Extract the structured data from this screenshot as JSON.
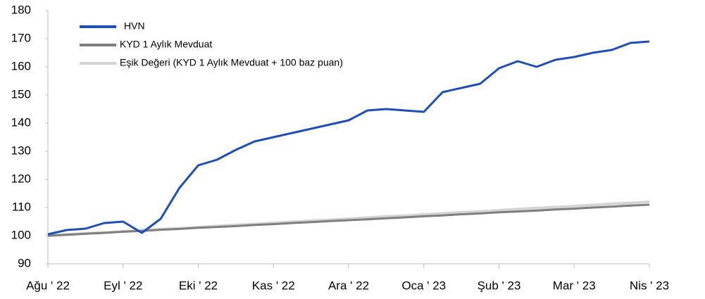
{
  "chart_data": {
    "type": "line",
    "categories": [
      "Ağu ' 22",
      null,
      null,
      null,
      "Eyl ' 22",
      null,
      null,
      null,
      "Eki ' 22",
      null,
      null,
      null,
      "Kas ' 22",
      null,
      null,
      null,
      "Ara ' 22",
      null,
      null,
      null,
      "Oca ' 23",
      null,
      null,
      null,
      "Şub ' 23",
      null,
      null,
      null,
      "Mar ' 23",
      null,
      null,
      null,
      "Nis ' 23"
    ],
    "series": [
      {
        "name": "HVN",
        "color": "#1f4eb4",
        "values": [
          100.5,
          102,
          102.5,
          104.5,
          105,
          101,
          106,
          117,
          125,
          127,
          130.5,
          133.5,
          135,
          136.5,
          138,
          139.5,
          141,
          144.5,
          145,
          144.5,
          144,
          151,
          152.5,
          154,
          159.5,
          162,
          160,
          162.5,
          163.5,
          165,
          166,
          168.5,
          169
        ]
      },
      {
        "name": "KYD 1 Aylık Mevduat",
        "color": "#7f7f7f",
        "values": [
          100,
          100.3,
          100.7,
          101,
          101.4,
          101.7,
          102.1,
          102.4,
          102.8,
          103.1,
          103.4,
          103.8,
          104.1,
          104.5,
          104.8,
          105.2,
          105.5,
          105.8,
          106.2,
          106.5,
          106.9,
          107.2,
          107.6,
          107.9,
          108.3,
          108.6,
          108.9,
          109.3,
          109.6,
          110,
          110.3,
          110.7,
          111
        ]
      },
      {
        "name": "Eşik Değeri (KYD 1 Aylık Mevduat + 100 baz puan)",
        "color": "#d4d4d4",
        "values": [
          100,
          100.4,
          100.8,
          101.1,
          101.5,
          101.9,
          102.3,
          102.6,
          103,
          103.4,
          103.8,
          104.1,
          104.5,
          104.9,
          105.3,
          105.6,
          106,
          106.4,
          106.8,
          107.1,
          107.5,
          107.9,
          108.3,
          108.6,
          109,
          109.4,
          109.8,
          110.1,
          110.5,
          110.9,
          111.3,
          111.6,
          112
        ]
      }
    ],
    "ylim": [
      90,
      180
    ],
    "yticks": [
      90,
      100,
      110,
      120,
      130,
      140,
      150,
      160,
      170,
      180
    ],
    "legend": "upper left"
  }
}
